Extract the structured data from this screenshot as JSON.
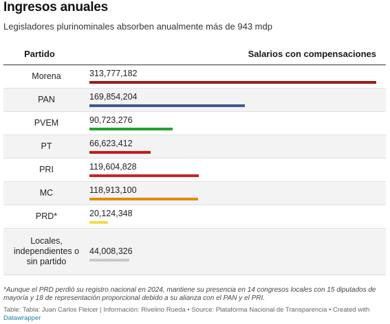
{
  "title": "Ingresos anuales",
  "subtitle": "Legisladores plurinominales absorben anualmente más de 943 mdp",
  "header": {
    "party": "Partido",
    "value": "Salarios con compensaciones"
  },
  "chart_data": {
    "type": "table",
    "columns": [
      "Partido",
      "Salarios con compensaciones"
    ],
    "max_value": 313777182,
    "rows": [
      {
        "party": "Morena",
        "value": 313777182,
        "label": "313,777,182",
        "color": "#9b1c1c"
      },
      {
        "party": "PAN",
        "value": 169854204,
        "label": "169,854,204",
        "color": "#3a5d8f"
      },
      {
        "party": "PVEM",
        "value": 90723276,
        "label": "90,723,276",
        "color": "#22a12f"
      },
      {
        "party": "PT",
        "value": 66623412,
        "label": "66,623,412",
        "color": "#c8191e"
      },
      {
        "party": "PRI",
        "value": 119604828,
        "label": "119,604,828",
        "color": "#c2262b"
      },
      {
        "party": "MC",
        "value": 118913100,
        "label": "118,913,100",
        "color": "#e38c0e"
      },
      {
        "party": "PRD*",
        "value": 20124348,
        "label": "20,124,348",
        "color": "#f2dc4a"
      },
      {
        "party": "Locales, independientes o sin partido",
        "value": 44008326,
        "label": "44,008,326",
        "color": "#c9c9c9"
      }
    ]
  },
  "footnote": "*Aunque el PRD perdió su registro nacional en 2024, mantiene su presencia en 14 congresos locales con 15 diputados de mayoría y 18 de representación proporcional debido a su alianza con el PAN y el PRI.",
  "source_text": "Table: Tabla: Juan Carlos Fleicer | Información: Rivelino Rueda • Source: Plataforma Nacional de Transparencia • Created with ",
  "source_link": "Datawrapper"
}
